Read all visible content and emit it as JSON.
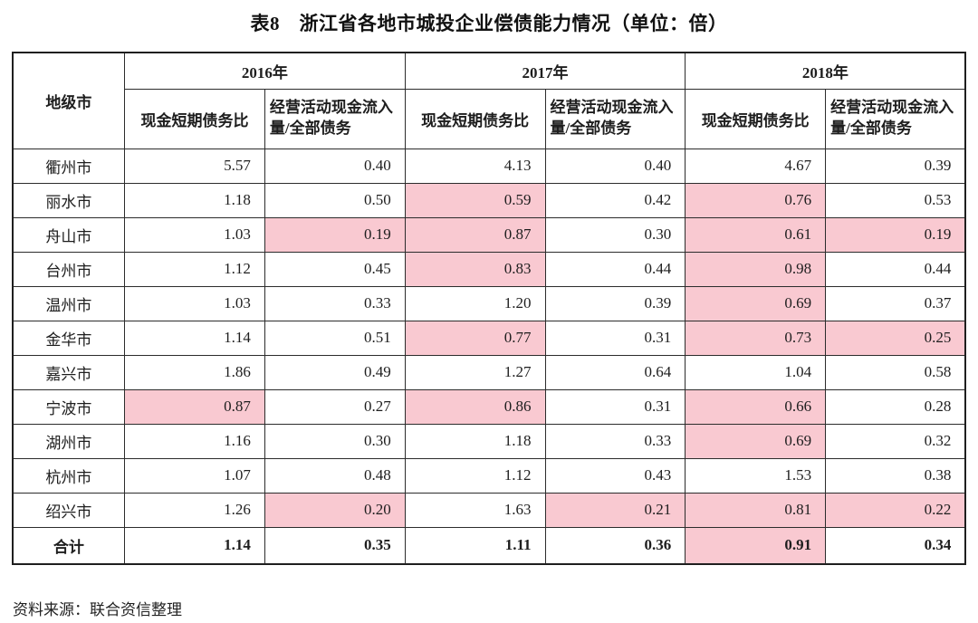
{
  "title": "表8　浙江省各地市城投企业偿债能力情况（单位：倍）",
  "source_note": "资料来源：联合资信整理",
  "colors": {
    "highlight_bg": "#F9C9D1",
    "highlight_text": "#8E2430",
    "border": "#2C2C2C",
    "text": "#1E1E1E"
  },
  "table": {
    "city_header": "地级市",
    "year_groups": [
      "2016年",
      "2017年",
      "2018年"
    ],
    "metric_headers": [
      "现金短期债务比",
      "经营活动现金流入量/全部债务"
    ],
    "rows": [
      {
        "city": "衢州市",
        "values": [
          "5.57",
          "0.40",
          "4.13",
          "0.40",
          "4.67",
          "0.39"
        ],
        "highlight": [
          false,
          false,
          false,
          false,
          false,
          false
        ]
      },
      {
        "city": "丽水市",
        "values": [
          "1.18",
          "0.50",
          "0.59",
          "0.42",
          "0.76",
          "0.53"
        ],
        "highlight": [
          false,
          false,
          true,
          false,
          true,
          false
        ]
      },
      {
        "city": "舟山市",
        "values": [
          "1.03",
          "0.19",
          "0.87",
          "0.30",
          "0.61",
          "0.19"
        ],
        "highlight": [
          false,
          true,
          true,
          false,
          true,
          true
        ]
      },
      {
        "city": "台州市",
        "values": [
          "1.12",
          "0.45",
          "0.83",
          "0.44",
          "0.98",
          "0.44"
        ],
        "highlight": [
          false,
          false,
          true,
          false,
          true,
          false
        ]
      },
      {
        "city": "温州市",
        "values": [
          "1.03",
          "0.33",
          "1.20",
          "0.39",
          "0.69",
          "0.37"
        ],
        "highlight": [
          false,
          false,
          false,
          false,
          true,
          false
        ]
      },
      {
        "city": "金华市",
        "values": [
          "1.14",
          "0.51",
          "0.77",
          "0.31",
          "0.73",
          "0.25"
        ],
        "highlight": [
          false,
          false,
          true,
          false,
          true,
          true
        ]
      },
      {
        "city": "嘉兴市",
        "values": [
          "1.86",
          "0.49",
          "1.27",
          "0.64",
          "1.04",
          "0.58"
        ],
        "highlight": [
          false,
          false,
          false,
          false,
          false,
          false
        ]
      },
      {
        "city": "宁波市",
        "values": [
          "0.87",
          "0.27",
          "0.86",
          "0.31",
          "0.66",
          "0.28"
        ],
        "highlight": [
          true,
          false,
          true,
          false,
          true,
          false
        ]
      },
      {
        "city": "湖州市",
        "values": [
          "1.16",
          "0.30",
          "1.18",
          "0.33",
          "0.69",
          "0.32"
        ],
        "highlight": [
          false,
          false,
          false,
          false,
          true,
          false
        ]
      },
      {
        "city": "杭州市",
        "values": [
          "1.07",
          "0.48",
          "1.12",
          "0.43",
          "1.53",
          "0.38"
        ],
        "highlight": [
          false,
          false,
          false,
          false,
          false,
          false
        ]
      },
      {
        "city": "绍兴市",
        "values": [
          "1.26",
          "0.20",
          "1.63",
          "0.21",
          "0.81",
          "0.22"
        ],
        "highlight": [
          false,
          true,
          false,
          true,
          true,
          true
        ]
      }
    ],
    "total_row": {
      "city": "合计",
      "values": [
        "1.14",
        "0.35",
        "1.11",
        "0.36",
        "0.91",
        "0.34"
      ],
      "highlight": [
        false,
        false,
        false,
        false,
        true,
        false
      ]
    }
  }
}
